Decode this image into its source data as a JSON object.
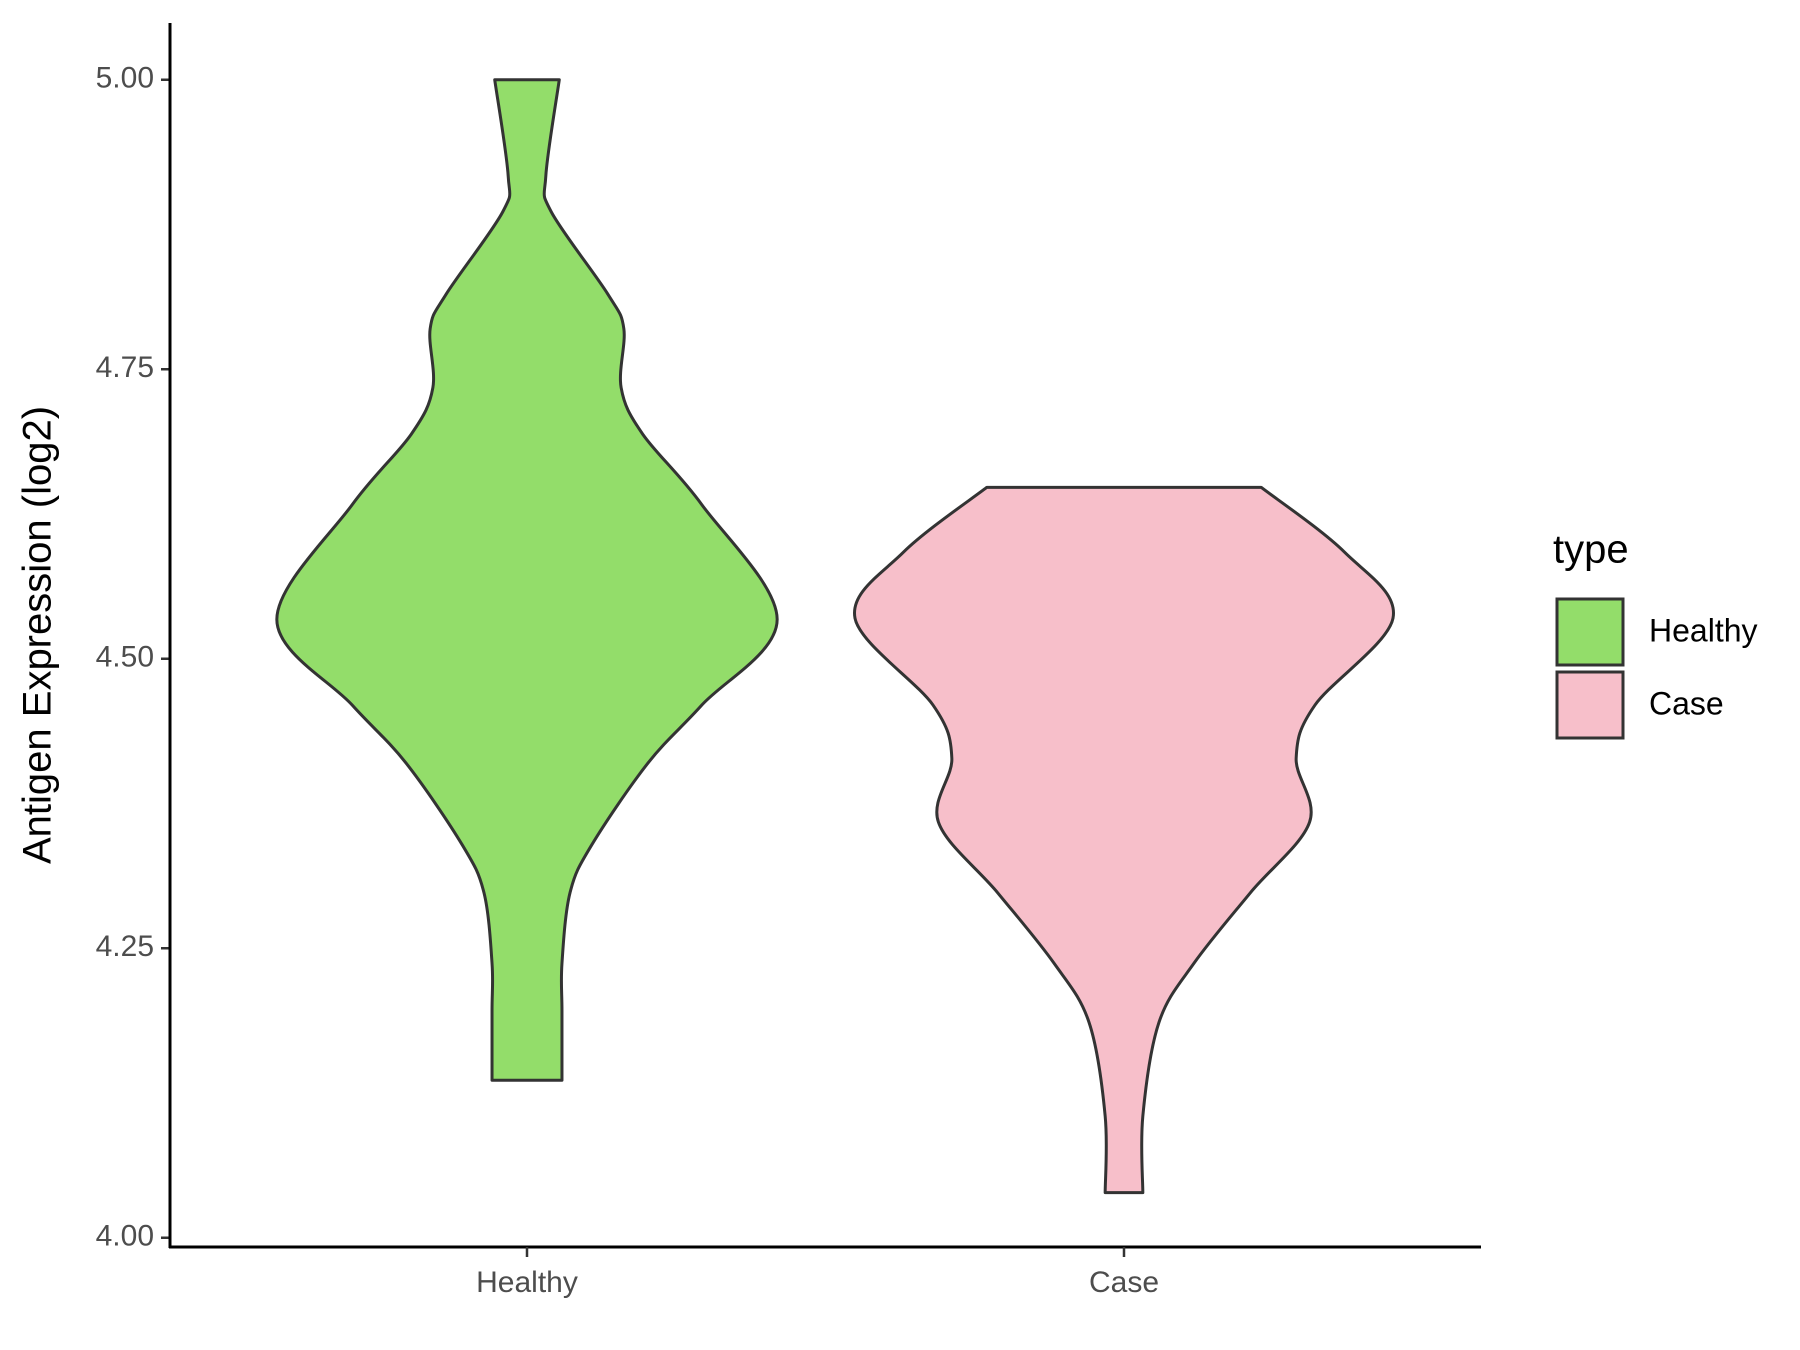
{
  "chart_data": {
    "type": "violin",
    "ylabel": "Antigen Expression (log2)",
    "categories": [
      "Healthy",
      "Case"
    ],
    "legend_title": "type",
    "legend": "right",
    "series": [
      {
        "name": "Healthy",
        "color": "#93dd6a",
        "y": [
          5.0,
          4.917,
          4.886,
          4.815,
          4.785,
          4.734,
          4.694,
          4.633,
          4.534,
          4.46,
          4.41,
          4.339,
          4.298,
          4.237,
          4.196,
          4.136
        ],
        "density": [
          0.12,
          0.07,
          0.09,
          0.3,
          0.36,
          0.35,
          0.43,
          0.65,
          0.93,
          0.65,
          0.45,
          0.24,
          0.16,
          0.13,
          0.13,
          0.13
        ]
      },
      {
        "name": "Case",
        "color": "#f7bfca",
        "y": [
          4.648,
          4.592,
          4.535,
          4.46,
          4.414,
          4.359,
          4.298,
          4.237,
          4.186,
          4.105,
          4.039
        ],
        "density": [
          0.51,
          0.82,
          1.0,
          0.71,
          0.64,
          0.69,
          0.47,
          0.26,
          0.13,
          0.07,
          0.07
        ]
      }
    ],
    "ylim": [
      3.992,
      5.049
    ],
    "yticks": [
      {
        "value": 4,
        "label": "4.00"
      },
      {
        "value": 4.25,
        "label": "4.25"
      },
      {
        "value": 4.5,
        "label": "4.50"
      },
      {
        "value": 4.75,
        "label": "4.75"
      },
      {
        "value": 5,
        "label": "5.00"
      }
    ]
  }
}
